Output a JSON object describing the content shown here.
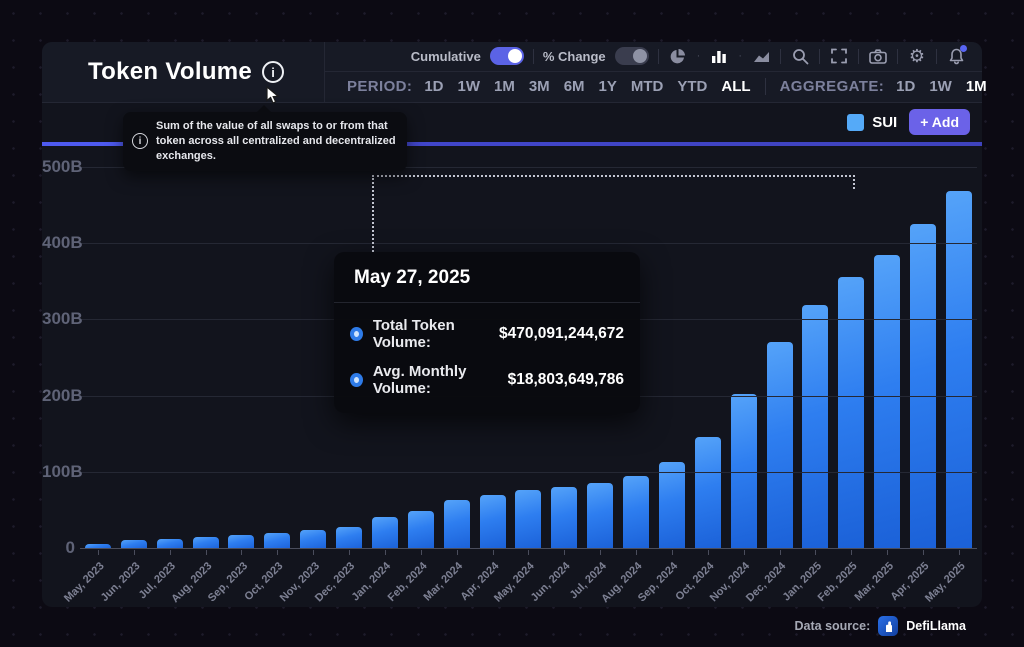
{
  "panel": {
    "title": "Token Volume",
    "info_tooltip": "Sum of the value of all swaps to or from that token across all centralized and decentralized exchanges.",
    "toolbar": {
      "cumulative_label": "Cumulative",
      "cumulative_on": true,
      "pct_change_label": "% Change",
      "pct_change_on": false,
      "icons": [
        "pie-chart-icon",
        "bar-chart-icon",
        "area-chart-icon",
        "search-icon",
        "fullscreen-icon",
        "camera-icon",
        "settings-icon",
        "notifications-icon"
      ]
    },
    "period": {
      "label": "PERIOD:",
      "options": [
        "1D",
        "1W",
        "1M",
        "3M",
        "6M",
        "1Y",
        "MTD",
        "YTD",
        "ALL"
      ],
      "selected": "ALL"
    },
    "aggregate": {
      "label": "AGGREGATE:",
      "options": [
        "1D",
        "1W",
        "1M"
      ],
      "selected": "1M"
    },
    "legend": {
      "series": "SUI",
      "color": "#55aaf8",
      "add_button": "+ Add"
    }
  },
  "tooltip": {
    "date": "May 27, 2025",
    "marker_color": "#2e7be8",
    "rows": [
      {
        "label": "Total Token Volume:",
        "value": "$470,091,244,672"
      },
      {
        "label": "Avg. Monthly Volume:",
        "value": "$18,803,649,786"
      }
    ]
  },
  "chart_data": {
    "type": "bar",
    "title": "Token Volume (Cumulative)",
    "series_name": "SUI",
    "unit": "USD billions",
    "categories": [
      "May, 2023",
      "Jun, 2023",
      "Jul, 2023",
      "Aug, 2023",
      "Sep, 2023",
      "Oct, 2023",
      "Nov, 2023",
      "Dec, 2023",
      "Jan, 2024",
      "Feb, 2024",
      "Mar, 2024",
      "Apr, 2024",
      "May, 2024",
      "Jun, 2024",
      "Jul, 2024",
      "Aug, 2024",
      "Sep, 2024",
      "Oct, 2024",
      "Nov, 2024",
      "Dec, 2024",
      "Jan, 2025",
      "Feb, 2025",
      "Mar, 2025",
      "Apr, 2025",
      "May, 2025"
    ],
    "values": [
      6.5,
      11.5,
      13,
      16,
      18,
      21,
      25,
      29,
      42,
      50,
      64,
      71,
      77,
      82,
      86,
      96,
      114,
      147,
      204,
      272,
      320,
      357,
      386,
      426,
      470.1
    ],
    "ylim": [
      0,
      500
    ],
    "yticks": [
      0,
      100,
      200,
      300,
      400,
      500
    ],
    "ytick_labels": [
      "0",
      "100B",
      "200B",
      "300B",
      "400B",
      "500B"
    ],
    "grid": true,
    "legend_position": "top-right",
    "bar_color_top": "#55a3f9",
    "bar_color_bottom": "#1b61d8"
  },
  "footer": {
    "label": "Data source:",
    "brand": "DefiLlama"
  }
}
